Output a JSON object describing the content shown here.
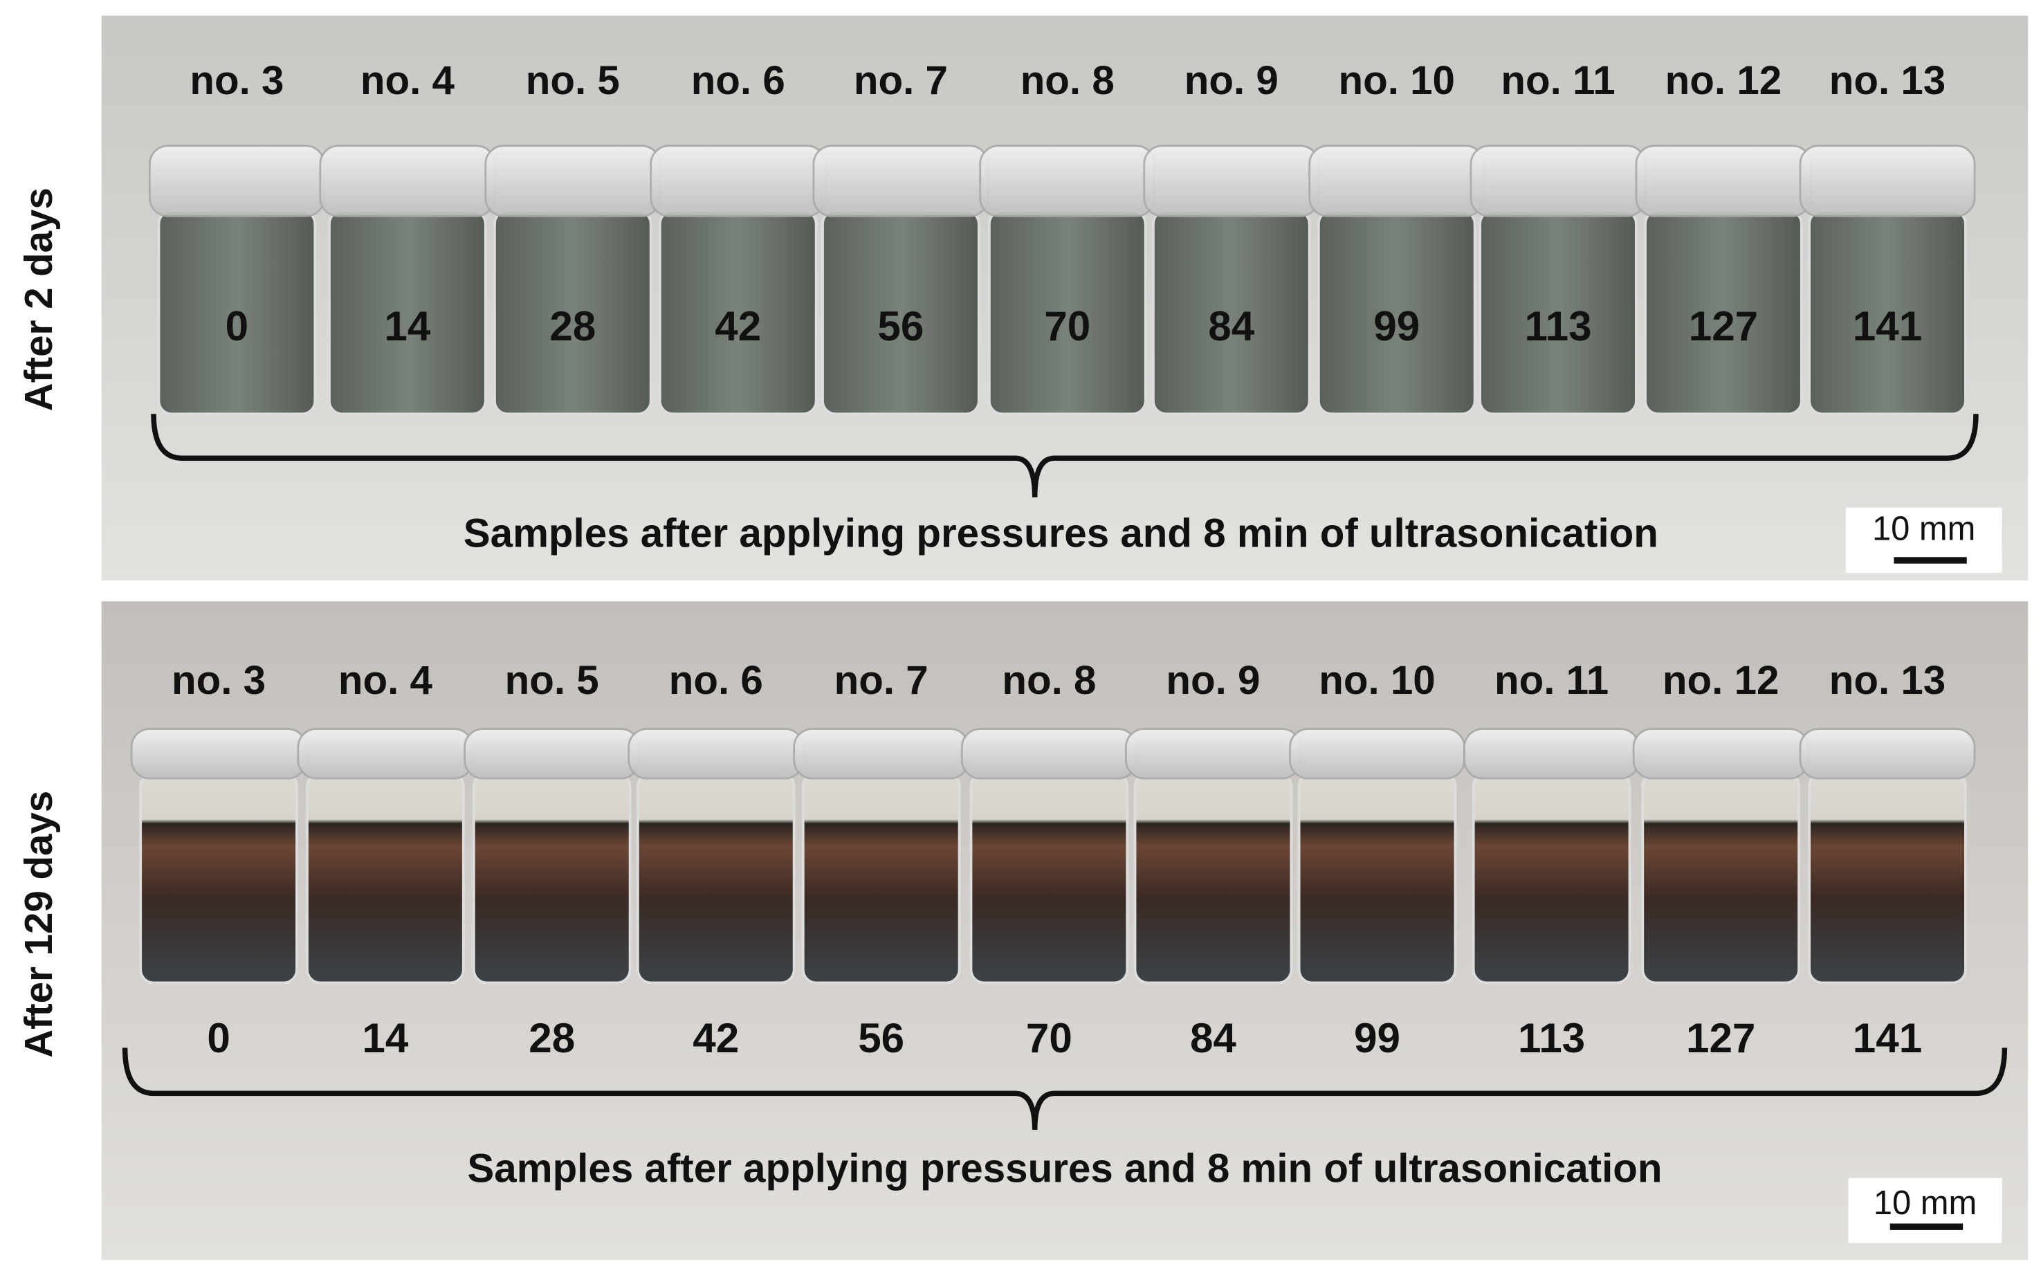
{
  "panels": [
    {
      "side_label": "After 2 days",
      "samples": [
        {
          "name": "no. 3",
          "pressure": 0
        },
        {
          "name": "no. 4",
          "pressure": 14
        },
        {
          "name": "no. 5",
          "pressure": 28
        },
        {
          "name": "no. 6",
          "pressure": 42
        },
        {
          "name": "no. 7",
          "pressure": 56
        },
        {
          "name": "no. 8",
          "pressure": 70
        },
        {
          "name": "no. 9",
          "pressure": 84
        },
        {
          "name": "no. 10",
          "pressure": 99
        },
        {
          "name": "no. 11",
          "pressure": 113
        },
        {
          "name": "no. 12",
          "pressure": 127
        },
        {
          "name": "no. 13",
          "pressure": 141
        }
      ],
      "caption": "Samples after applying pressures and 8 min of ultrasonication",
      "scale_bar": "10 mm"
    },
    {
      "side_label": "After 129 days",
      "samples": [
        {
          "name": "no. 3",
          "pressure": 0
        },
        {
          "name": "no. 4",
          "pressure": 14
        },
        {
          "name": "no. 5",
          "pressure": 28
        },
        {
          "name": "no. 6",
          "pressure": 42
        },
        {
          "name": "no. 7",
          "pressure": 56
        },
        {
          "name": "no. 8",
          "pressure": 70
        },
        {
          "name": "no. 9",
          "pressure": 84
        },
        {
          "name": "no. 10",
          "pressure": 99
        },
        {
          "name": "no. 11",
          "pressure": 113
        },
        {
          "name": "no. 12",
          "pressure": 127
        },
        {
          "name": "no. 13",
          "pressure": 141
        }
      ],
      "caption": "Samples after applying pressures and 8 min of ultrasonication",
      "scale_bar": "10 mm"
    }
  ]
}
